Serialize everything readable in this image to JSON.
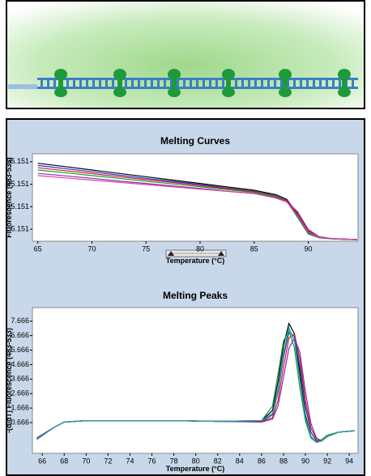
{
  "chart_data": [
    {
      "type": "line",
      "title": "Melting Curves",
      "x_label": "Temperature (°C)",
      "y_label": "Fluorescence (483-533)",
      "x": [
        65,
        67.5,
        70,
        72.5,
        75,
        77.5,
        80,
        82.5,
        85,
        87,
        88,
        89,
        90,
        91,
        92,
        93,
        94.5
      ],
      "series": [
        {
          "color": "#000000",
          "values": [
            34.5,
            33,
            31.5,
            30,
            28.5,
            27,
            25.5,
            24,
            22.5,
            20.5,
            18.5,
            12,
            4,
            1.5,
            1.0,
            0.8,
            0.6
          ]
        },
        {
          "color": "#1f2fd0",
          "values": [
            33.5,
            32.1,
            30.7,
            29.2,
            27.8,
            26.4,
            25,
            23.5,
            22,
            20,
            18,
            11,
            3.5,
            1.4,
            0.9,
            0.7,
            0.5
          ]
        },
        {
          "color": "#d02020",
          "values": [
            32.5,
            31.2,
            29.9,
            28.5,
            27.2,
            25.9,
            24.5,
            23.2,
            21.8,
            19.8,
            18,
            12.5,
            4.5,
            1.6,
            1.0,
            0.8,
            0.6
          ]
        },
        {
          "color": "#1a9a2a",
          "values": [
            31.5,
            30.3,
            29,
            27.8,
            26.5,
            25.3,
            24,
            22.8,
            21.5,
            19.6,
            17.6,
            10.5,
            3,
            1.3,
            0.9,
            0.7,
            0.5
          ]
        },
        {
          "color": "#8a2ab0",
          "values": [
            30,
            28.9,
            27.8,
            26.6,
            25.5,
            24.4,
            23.3,
            22.1,
            21,
            19.2,
            17.5,
            13,
            5,
            1.8,
            1.1,
            0.8,
            0.6
          ]
        },
        {
          "color": "#e040a0",
          "values": [
            29,
            28,
            27,
            26,
            25,
            24,
            23,
            22,
            21,
            19,
            17.3,
            11.5,
            3.8,
            1.5,
            1.0,
            0.7,
            0.5
          ]
        }
      ],
      "xlim": [
        64.5,
        94.6
      ],
      "xticks": [
        65,
        70,
        75,
        80,
        85,
        90
      ],
      "ylim": [
        -0.2,
        38.7
      ],
      "yticks": [
        5.151,
        15.151,
        25.151,
        35.151
      ]
    },
    {
      "type": "line",
      "title": "Melting Peaks",
      "x_label": "Temperature (°C)",
      "y_label": "-(d/dT) Fluorescence (483-533)",
      "x": [
        65.5,
        67,
        68,
        70,
        74,
        78,
        82,
        86,
        87,
        87.5,
        88,
        88.5,
        89,
        89.5,
        90,
        90.5,
        91,
        91.5,
        92,
        93,
        94.5
      ],
      "series": [
        {
          "color": "#000000",
          "values": [
            -0.5,
            0.3,
            0.7,
            0.8,
            0.8,
            0.8,
            0.75,
            0.8,
            1.5,
            3.5,
            6,
            7.5,
            6.8,
            4,
            1.2,
            -0.3,
            -0.7,
            -0.6,
            -0.3,
            0,
            0.1
          ]
        },
        {
          "color": "#1f2fd0",
          "values": [
            -0.5,
            0.3,
            0.7,
            0.8,
            0.8,
            0.8,
            0.75,
            0.75,
            1.2,
            2.8,
            5.2,
            6.9,
            6.6,
            4.5,
            1.8,
            0,
            -0.6,
            -0.6,
            -0.3,
            0,
            0.1
          ]
        },
        {
          "color": "#d02020",
          "values": [
            -0.4,
            0.3,
            0.7,
            0.8,
            0.8,
            0.8,
            0.75,
            0.75,
            1,
            2.2,
            4.5,
            6.5,
            6.8,
            5,
            2.2,
            0.3,
            -0.5,
            -0.6,
            -0.3,
            0,
            0.1
          ]
        },
        {
          "color": "#1a9a2a",
          "values": [
            -0.5,
            0.3,
            0.7,
            0.8,
            0.8,
            0.8,
            0.75,
            0.8,
            1.8,
            4,
            6.3,
            7,
            5.8,
            3,
            0.8,
            -0.4,
            -0.7,
            -0.5,
            -0.2,
            0,
            0.1
          ]
        },
        {
          "color": "#8a2ab0",
          "values": [
            -0.4,
            0.3,
            0.7,
            0.8,
            0.8,
            0.8,
            0.75,
            0.7,
            0.9,
            1.8,
            3.8,
            5.8,
            6.5,
            5.5,
            2.8,
            0.6,
            -0.4,
            -0.6,
            -0.3,
            0,
            0.1
          ]
        },
        {
          "color": "#20a0a0",
          "values": [
            -0.5,
            0.3,
            0.7,
            0.8,
            0.8,
            0.8,
            0.75,
            0.8,
            1.3,
            3,
            5.5,
            7.2,
            6.3,
            3.6,
            1,
            -0.3,
            -0.7,
            -0.6,
            -0.3,
            0,
            0.1
          ]
        }
      ],
      "xlim": [
        65.1,
        94.8
      ],
      "xticks": [
        66,
        68,
        70,
        72,
        74,
        76,
        78,
        80,
        82,
        84,
        86,
        88,
        90,
        92,
        94
      ],
      "ylim": [
        -1.46,
        8.6
      ],
      "yticks": [
        0.666,
        1.666,
        2.666,
        3.666,
        4.666,
        5.666,
        6.666,
        7.666
      ]
    }
  ]
}
